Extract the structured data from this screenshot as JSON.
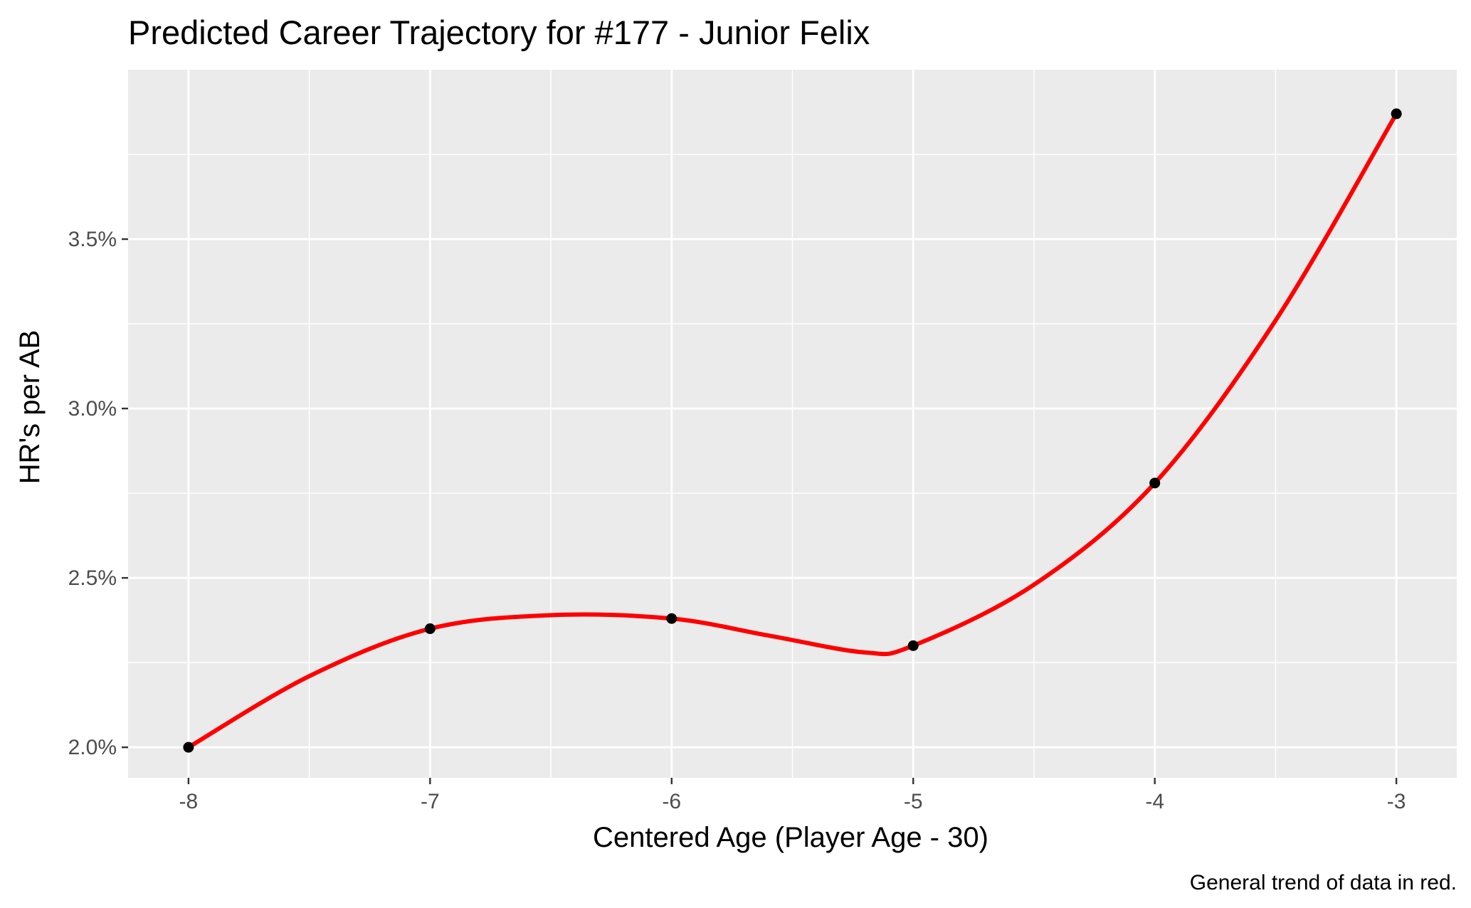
{
  "chart_data": {
    "type": "line",
    "title": "Predicted Career Trajectory for #177 - Junior Felix",
    "xlabel": "Centered Age (Player Age - 30)",
    "ylabel": "HR's per AB",
    "caption": "General trend of data in red.",
    "x_ticks": [
      -8,
      -7,
      -6,
      -5,
      -4,
      -3
    ],
    "x_tick_labels": [
      "-8",
      "-7",
      "-6",
      "-5",
      "-4",
      "-3"
    ],
    "y_ticks": [
      0.02,
      0.025,
      0.03,
      0.035
    ],
    "y_tick_labels": [
      "2.0%",
      "2.5%",
      "3.0%",
      "3.5%"
    ],
    "xlim": [
      -8.25,
      -2.75
    ],
    "ylim": [
      0.0191,
      0.04
    ],
    "grid": true,
    "points": {
      "x": [
        -8,
        -7,
        -6,
        -5,
        -4,
        -3
      ],
      "y": [
        0.02,
        0.0235,
        0.0238,
        0.023,
        0.0278,
        0.0387
      ],
      "color": "#000000"
    },
    "trend": {
      "x": [
        -8,
        -7.5,
        -7,
        -6.5,
        -6,
        -5.6,
        -5.2,
        -5,
        -4.5,
        -4,
        -3.5,
        -3
      ],
      "y": [
        0.02,
        0.0221,
        0.0235,
        0.0239,
        0.0238,
        0.0233,
        0.0228,
        0.023,
        0.0248,
        0.0278,
        0.0326,
        0.0387
      ],
      "color": "#ff0000"
    },
    "colors": {
      "panel": "#ebebeb",
      "grid": "#ffffff",
      "trend": "#ff0000",
      "points": "#000000"
    }
  }
}
